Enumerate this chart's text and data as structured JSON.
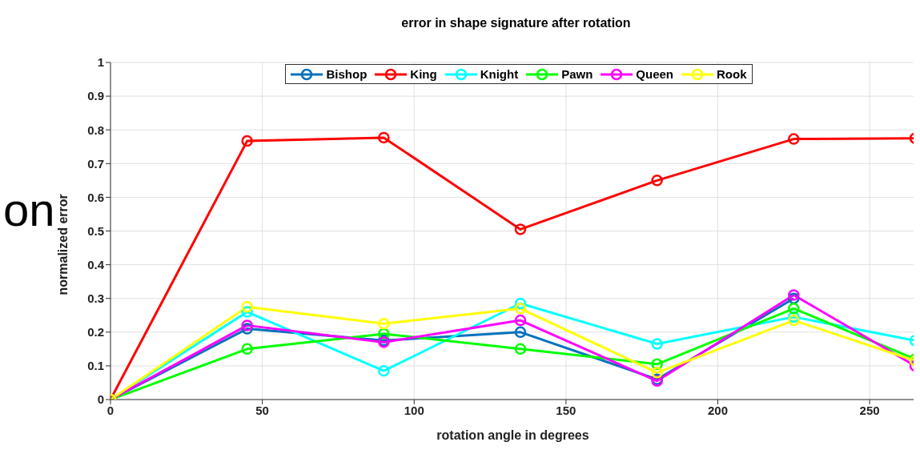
{
  "chart_data": {
    "type": "line",
    "title": "error in shape signature after rotation",
    "xlabel": "rotation angle in degrees",
    "ylabel": "normalized error",
    "annotations": [
      "on"
    ],
    "x": [
      0,
      45,
      90,
      135,
      180,
      225,
      265
    ],
    "series": [
      {
        "name": "Bishop",
        "color": "#0072bd",
        "values": [
          0,
          0.21,
          0.175,
          0.2,
          0.06,
          0.3,
          null
        ]
      },
      {
        "name": "King",
        "color": "#ff0000",
        "values": [
          0,
          0.767,
          0.777,
          0.505,
          0.65,
          0.773,
          0.775
        ]
      },
      {
        "name": "Knight",
        "color": "#00ffff",
        "values": [
          0,
          0.26,
          0.085,
          0.285,
          0.165,
          0.245,
          0.175
        ]
      },
      {
        "name": "Pawn",
        "color": "#00ff00",
        "values": [
          0,
          0.15,
          0.195,
          0.15,
          0.105,
          0.27,
          0.12
        ]
      },
      {
        "name": "Queen",
        "color": "#ff00ff",
        "values": [
          0,
          0.22,
          0.17,
          0.235,
          0.055,
          0.31,
          0.1
        ]
      },
      {
        "name": "Rook",
        "color": "#ffff00",
        "values": [
          0,
          0.275,
          0.225,
          0.27,
          0.08,
          0.235,
          0.115
        ]
      }
    ],
    "xlim": [
      0,
      265
    ],
    "xticks": [
      0,
      50,
      100,
      150,
      200,
      250
    ],
    "ylim": [
      0,
      1
    ],
    "yticks": [
      0,
      0.1,
      0.2,
      0.3,
      0.4,
      0.5,
      0.6,
      0.7,
      0.8,
      0.9,
      1
    ],
    "grid": true,
    "legend": "top",
    "marker": "circle",
    "line_style": "solid"
  }
}
